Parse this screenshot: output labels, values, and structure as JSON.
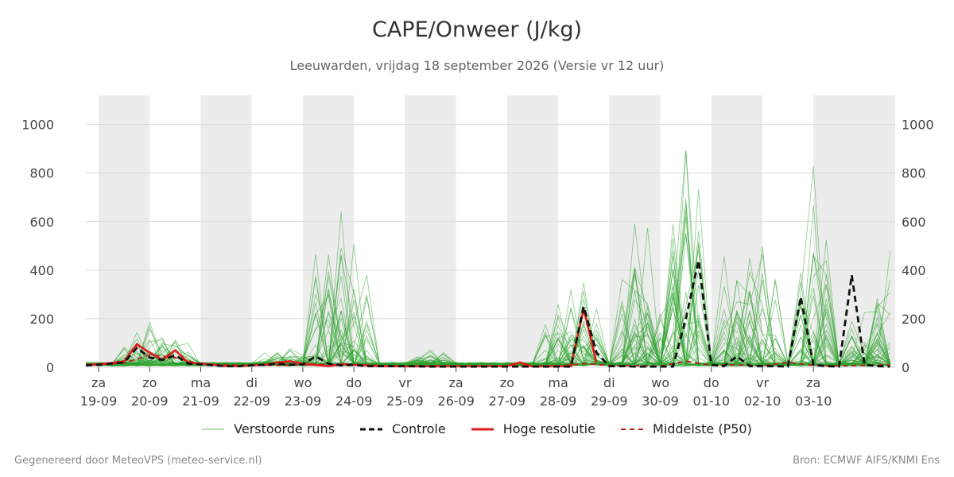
{
  "title": "CAPE/Onweer (J/kg)",
  "subtitle": "Leeuwarden, vrijdag 18 september 2026 (Versie vr 12 uur)",
  "footer_left": "Gegenereerd door MeteoVPS (meteo-service.nl)",
  "footer_right": "Bron: ECMWF AIFS/KNMI Ens",
  "chart_data": {
    "type": "line",
    "title": "CAPE/Onweer (J/kg)",
    "ylim": [
      0,
      1120
    ],
    "yticks": [
      0,
      200,
      400,
      600,
      800,
      1000
    ],
    "xlim": [
      -0.25,
      15.6
    ],
    "grid": true,
    "legend_position": "bottom",
    "weekend_shading": [
      [
        0,
        1
      ],
      [
        2,
        3
      ],
      [
        4,
        5
      ],
      [
        6,
        7
      ],
      [
        8,
        9
      ],
      [
        10,
        11
      ],
      [
        12,
        13
      ],
      [
        14,
        15.6
      ]
    ],
    "x_ticks": [
      {
        "day": "za",
        "date": "19-09"
      },
      {
        "day": "zo",
        "date": "20-09"
      },
      {
        "day": "ma",
        "date": "21-09"
      },
      {
        "day": "di",
        "date": "22-09"
      },
      {
        "day": "wo",
        "date": "23-09"
      },
      {
        "day": "do",
        "date": "24-09"
      },
      {
        "day": "vr",
        "date": "25-09"
      },
      {
        "day": "za",
        "date": "26-09"
      },
      {
        "day": "zo",
        "date": "27-09"
      },
      {
        "day": "ma",
        "date": "28-09"
      },
      {
        "day": "di",
        "date": "29-09"
      },
      {
        "day": "wo",
        "date": "30-09"
      },
      {
        "day": "do",
        "date": "01-10"
      },
      {
        "day": "vr",
        "date": "02-10"
      },
      {
        "day": "za",
        "date": "03-10"
      }
    ],
    "legend": [
      {
        "label": "Verstoorde runs",
        "color": "#2ca02c",
        "style": "thin"
      },
      {
        "label": "Controle",
        "color": "#111111",
        "style": "dashed"
      },
      {
        "label": "Hoge resolutie",
        "color": "#e31a1c",
        "style": "solid"
      },
      {
        "label": "Middelste (P50)",
        "color": "#b22222",
        "style": "dashed-thin"
      }
    ],
    "series": [
      {
        "name": "Controle",
        "x": [
          -0.25,
          0,
          0.25,
          0.5,
          0.75,
          1,
          1.25,
          1.5,
          1.75,
          2,
          2.25,
          2.5,
          2.75,
          3,
          3.25,
          3.5,
          3.75,
          4,
          4.25,
          4.5,
          4.75,
          5,
          5.25,
          5.5,
          5.75,
          6,
          6.5,
          7,
          7.5,
          8,
          8.25,
          8.5,
          8.75,
          9,
          9.25,
          9.5,
          9.75,
          10,
          10.25,
          10.5,
          10.75,
          11,
          11.25,
          11.5,
          11.75,
          12,
          12.25,
          12.5,
          12.75,
          13,
          13.25,
          13.5,
          13.75,
          14,
          14.25,
          14.5,
          14.75,
          15,
          15.25,
          15.5
        ],
        "values": [
          8,
          10,
          15,
          20,
          80,
          40,
          30,
          50,
          15,
          12,
          8,
          5,
          5,
          8,
          10,
          15,
          10,
          12,
          45,
          15,
          8,
          10,
          5,
          5,
          5,
          5,
          3,
          3,
          3,
          3,
          3,
          3,
          3,
          3,
          3,
          250,
          60,
          5,
          5,
          3,
          3,
          3,
          3,
          200,
          440,
          10,
          5,
          45,
          5,
          5,
          5,
          3,
          290,
          10,
          5,
          3,
          380,
          10,
          5,
          3
        ]
      },
      {
        "name": "Hoge resolutie",
        "x": [
          -0.25,
          0,
          0.25,
          0.5,
          0.75,
          1,
          1.25,
          1.5,
          1.75,
          2,
          2.25,
          2.5,
          2.75,
          3,
          3.25,
          3.5,
          3.75,
          4,
          4.25,
          4.5,
          4.75,
          5,
          5.25,
          5.5,
          5.75,
          6,
          6.5,
          7,
          7.5,
          8,
          8.25,
          8.5,
          8.75,
          9,
          9.25,
          9.5,
          9.75
        ],
        "values": [
          10,
          12,
          18,
          25,
          95,
          60,
          30,
          70,
          20,
          15,
          10,
          5,
          5,
          8,
          10,
          20,
          25,
          15,
          10,
          5,
          12,
          10,
          8,
          5,
          5,
          4,
          5,
          5,
          5,
          5,
          20,
          3,
          5,
          5,
          5,
          240,
          20
        ]
      },
      {
        "name": "Middelste (P50)",
        "x": [
          -0.25,
          0,
          0.5,
          1,
          1.5,
          2,
          3,
          4,
          4.5,
          5,
          6,
          7,
          8,
          9,
          9.5,
          10,
          11,
          11.5,
          12,
          12.5,
          13,
          13.5,
          14,
          14.5,
          15,
          15.5
        ],
        "values": [
          8,
          10,
          18,
          50,
          40,
          12,
          8,
          10,
          12,
          10,
          5,
          4,
          5,
          5,
          15,
          8,
          5,
          25,
          8,
          10,
          6,
          20,
          8,
          6,
          8,
          10
        ]
      }
    ]
  }
}
